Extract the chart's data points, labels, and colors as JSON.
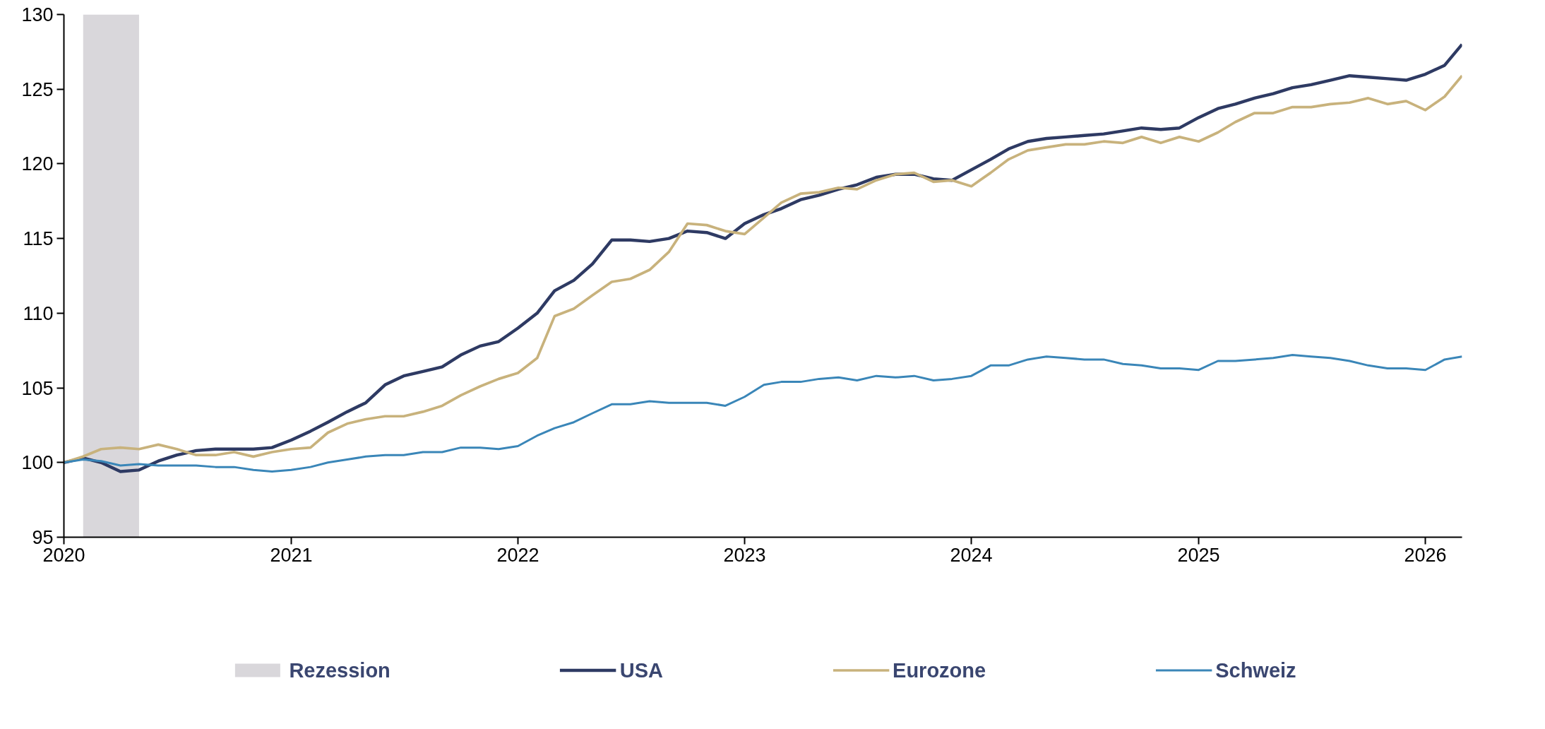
{
  "chart_data": {
    "type": "line",
    "x": [
      "2020-01",
      "2020-02",
      "2020-03",
      "2020-04",
      "2020-05",
      "2020-06",
      "2020-07",
      "2020-08",
      "2020-09",
      "2020-10",
      "2020-11",
      "2020-12",
      "2021-01",
      "2021-02",
      "2021-03",
      "2021-04",
      "2021-05",
      "2021-06",
      "2021-07",
      "2021-08",
      "2021-09",
      "2021-10",
      "2021-11",
      "2021-12",
      "2022-01",
      "2022-02",
      "2022-03",
      "2022-04",
      "2022-05",
      "2022-06",
      "2022-07",
      "2022-08",
      "2022-09",
      "2022-10",
      "2022-11",
      "2022-12",
      "2023-01",
      "2023-02",
      "2023-03",
      "2023-04",
      "2023-05",
      "2023-06",
      "2023-07",
      "2023-08",
      "2023-09",
      "2023-10",
      "2023-11",
      "2023-12",
      "2024-01",
      "2024-02",
      "2024-03",
      "2024-04",
      "2024-05",
      "2024-06",
      "2024-07",
      "2024-08",
      "2024-09",
      "2024-10",
      "2024-11",
      "2024-12",
      "2025-01",
      "2025-02",
      "2025-03",
      "2025-04",
      "2025-05",
      "2025-06",
      "2025-07",
      "2025-08",
      "2025-09",
      "2025-10",
      "2025-11",
      "2025-12",
      "2026-01",
      "2026-02",
      "2026-03"
    ],
    "series": [
      {
        "name": "USA",
        "color": "#2e3a63",
        "values": [
          100,
          100.3,
          100.0,
          99.4,
          99.5,
          100.1,
          100.5,
          100.8,
          100.9,
          100.9,
          100.9,
          101.0,
          101.5,
          102.1,
          102.7,
          103.4,
          104.0,
          105.2,
          105.8,
          106.1,
          106.4,
          107.2,
          107.8,
          108.1,
          109.0,
          110.0,
          111.5,
          112.2,
          113.3,
          114.9,
          114.9,
          114.8,
          115.0,
          115.5,
          115.4,
          115.0,
          116.0,
          116.6,
          117.0,
          117.6,
          117.9,
          118.3,
          118.6,
          119.1,
          119.3,
          119.3,
          119.0,
          118.9,
          119.6,
          120.3,
          121.0,
          121.5,
          121.7,
          121.8,
          121.9,
          122.0,
          122.2,
          122.4,
          122.3,
          122.4,
          123.1,
          123.7,
          124.0,
          124.4,
          124.7,
          125.1,
          125.3,
          125.6,
          125.9,
          125.8,
          125.7,
          125.6,
          126.0,
          126.6,
          128.0
        ]
      },
      {
        "name": "Eurozone",
        "color": "#c8b27c",
        "values": [
          100,
          100.4,
          100.9,
          101.0,
          100.9,
          101.2,
          100.9,
          100.5,
          100.5,
          100.7,
          100.4,
          100.7,
          100.9,
          101.0,
          102.0,
          102.6,
          102.9,
          103.1,
          103.1,
          103.4,
          103.8,
          104.5,
          105.1,
          105.6,
          106.0,
          107.0,
          109.8,
          110.3,
          111.2,
          112.1,
          112.3,
          112.9,
          114.1,
          116.0,
          115.9,
          115.5,
          115.3,
          116.4,
          117.4,
          118.0,
          118.1,
          118.4,
          118.3,
          118.9,
          119.3,
          119.4,
          118.8,
          118.9,
          118.5,
          119.4,
          120.3,
          120.9,
          121.1,
          121.3,
          121.3,
          121.5,
          121.4,
          121.8,
          121.4,
          121.8,
          121.5,
          122.1,
          122.8,
          123.4,
          123.4,
          123.8,
          123.8,
          124.0,
          124.1,
          124.4,
          124.0,
          124.2,
          123.6,
          124.5,
          125.9
        ]
      },
      {
        "name": "Schweiz",
        "color": "#3a86b8",
        "values": [
          100,
          100.2,
          100.1,
          99.8,
          99.9,
          99.8,
          99.8,
          99.8,
          99.7,
          99.7,
          99.5,
          99.4,
          99.5,
          99.7,
          100.0,
          100.2,
          100.4,
          100.5,
          100.5,
          100.7,
          100.7,
          101.0,
          101.0,
          100.9,
          101.1,
          101.8,
          102.3,
          102.7,
          103.3,
          103.9,
          103.9,
          104.1,
          104.0,
          104.0,
          104.0,
          103.8,
          104.4,
          105.2,
          105.4,
          105.4,
          105.6,
          105.7,
          105.5,
          105.8,
          105.7,
          105.8,
          105.5,
          105.6,
          105.8,
          106.5,
          106.5,
          106.9,
          107.1,
          107.0,
          106.9,
          106.9,
          106.6,
          106.5,
          106.3,
          106.3,
          106.2,
          106.8,
          106.8,
          106.9,
          107.0,
          107.2,
          107.1,
          107.0,
          106.8,
          106.5,
          106.3,
          106.3,
          106.2,
          106.9,
          107.1
        ]
      }
    ],
    "bands": [
      {
        "axis": "x",
        "from": "2020-02",
        "to": "2020-05",
        "label": "Rezession",
        "color": "#d9d7db"
      }
    ],
    "xlim": [
      "2020-01",
      "2026-03"
    ],
    "xticks": [
      "2020",
      "2021",
      "2022",
      "2023",
      "2024",
      "2025",
      "2026"
    ],
    "ylim": [
      95,
      130
    ],
    "yticks": [
      95,
      100,
      105,
      110,
      115,
      120,
      125,
      130
    ],
    "grid": false,
    "legend": "bottom",
    "line_style": "solid"
  }
}
